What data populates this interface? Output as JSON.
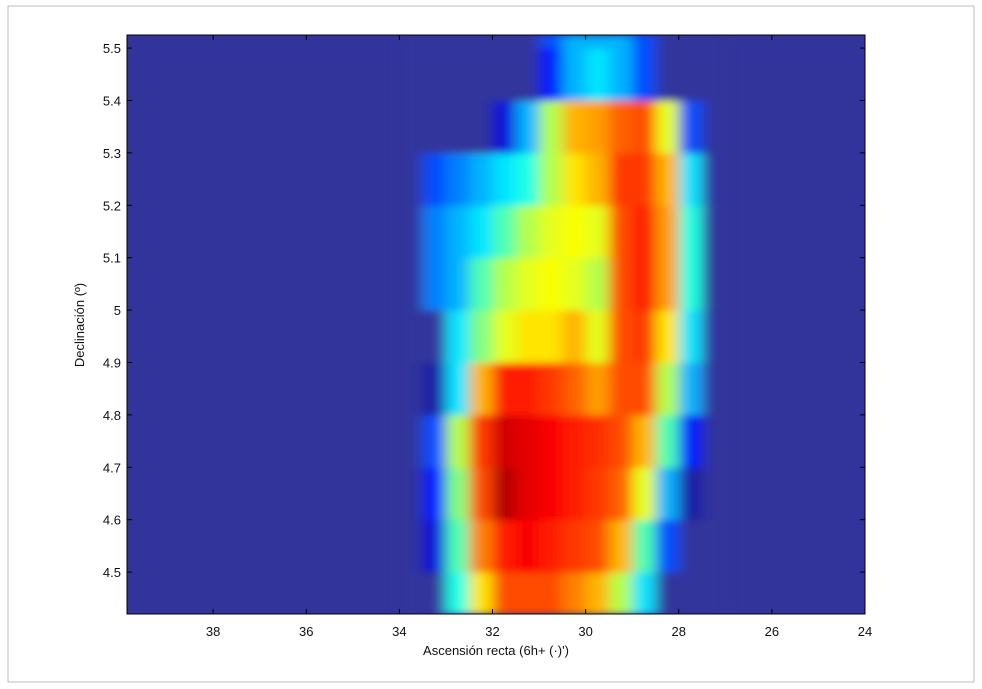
{
  "chart_data": {
    "type": "heatmap",
    "xlabel": "Ascensión recta (6h+ (·)')",
    "ylabel": "Declinación (º)",
    "xlim": [
      39.85,
      24
    ],
    "ylim": [
      4.42,
      5.525
    ],
    "xticks": [
      38,
      36,
      34,
      32,
      30,
      28,
      26,
      24
    ],
    "yticks": [
      4.5,
      4.6,
      4.7,
      4.8,
      4.9,
      5,
      5.1,
      5.2,
      5.3,
      5.4,
      5.5
    ],
    "x_edges": [
      34,
      33.5,
      33,
      32.5,
      32,
      31.5,
      31,
      30.5,
      30,
      29.5,
      29,
      28.5,
      28,
      27.5,
      27
    ],
    "y_edges": [
      4.42,
      4.5,
      4.6,
      4.7,
      4.8,
      4.9,
      5.0,
      5.1,
      5.2,
      5.3,
      5.4,
      5.5,
      5.525
    ],
    "z": [
      [
        0,
        0,
        0.4,
        0.65,
        0.8,
        0.8,
        0.8,
        0.75,
        0.7,
        0.55,
        0.35,
        0,
        0,
        0
      ],
      [
        0,
        0.1,
        0.45,
        0.75,
        0.85,
        0.88,
        0.85,
        0.82,
        0.8,
        0.7,
        0.45,
        0.2,
        0,
        0
      ],
      [
        0,
        0.15,
        0.5,
        0.8,
        0.95,
        0.9,
        0.88,
        0.85,
        0.82,
        0.78,
        0.6,
        0.3,
        0.05,
        0
      ],
      [
        0,
        0.2,
        0.55,
        0.82,
        0.92,
        0.9,
        0.88,
        0.85,
        0.83,
        0.8,
        0.7,
        0.45,
        0.15,
        0
      ],
      [
        0,
        0.05,
        0.35,
        0.7,
        0.85,
        0.85,
        0.82,
        0.78,
        0.72,
        0.8,
        0.8,
        0.55,
        0.3,
        0
      ],
      [
        0,
        0,
        0.35,
        0.5,
        0.6,
        0.65,
        0.65,
        0.7,
        0.6,
        0.8,
        0.82,
        0.65,
        0.35,
        0
      ],
      [
        0,
        0.25,
        0.3,
        0.45,
        0.55,
        0.6,
        0.62,
        0.6,
        0.55,
        0.8,
        0.85,
        0.72,
        0.4,
        0
      ],
      [
        0,
        0.25,
        0.3,
        0.35,
        0.45,
        0.55,
        0.6,
        0.62,
        0.6,
        0.8,
        0.85,
        0.72,
        0.4,
        0
      ],
      [
        0,
        0.2,
        0.25,
        0.3,
        0.35,
        0.4,
        0.55,
        0.65,
        0.7,
        0.82,
        0.82,
        0.7,
        0.35,
        0
      ],
      [
        0,
        0,
        0,
        0,
        0.1,
        0.3,
        0.55,
        0.7,
        0.72,
        0.78,
        0.8,
        0.6,
        0.2,
        0
      ],
      [
        0,
        0,
        0,
        0,
        0,
        0,
        0.15,
        0.3,
        0.35,
        0.3,
        0.2,
        0,
        0,
        0
      ],
      [
        0,
        0,
        0,
        0,
        0,
        0,
        0.2,
        0.3,
        0.3,
        0.3,
        0.2,
        0,
        0,
        0
      ]
    ]
  }
}
